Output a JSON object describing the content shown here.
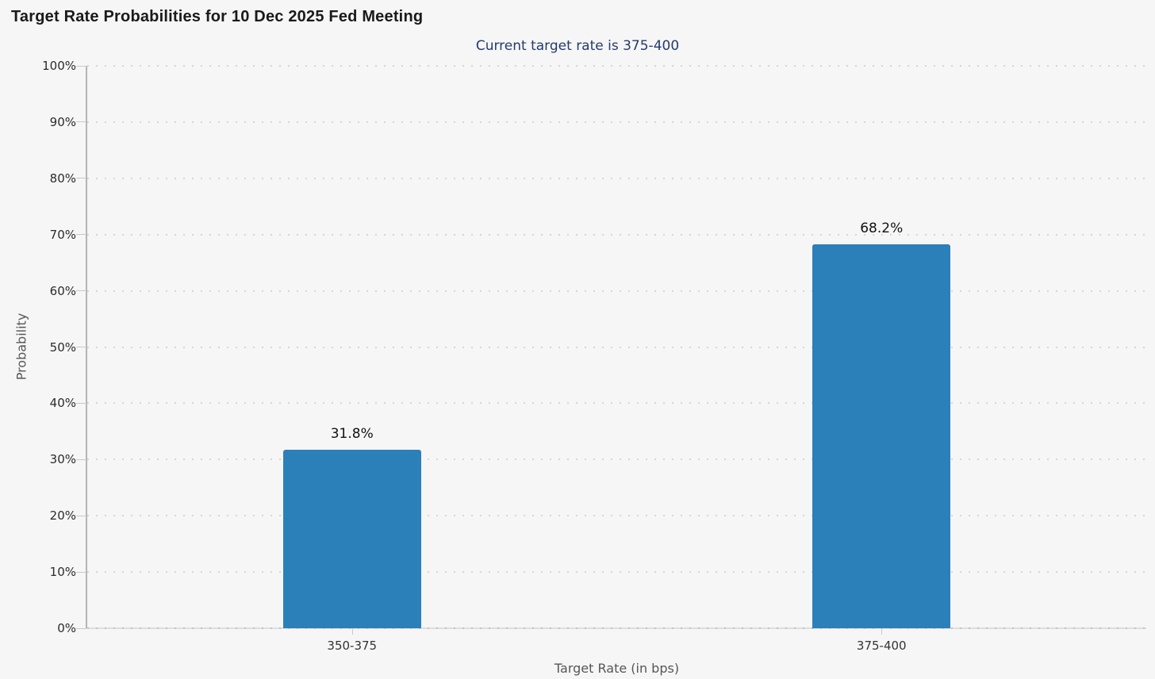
{
  "page": {
    "title": "Target Rate Probabilities for 10 Dec 2025 Fed Meeting",
    "subtitle": "Current target rate is 375-400"
  },
  "chart_data": {
    "type": "bar",
    "title": "Target Rate Probabilities for 10 Dec 2025 Fed Meeting",
    "subtitle": "Current target rate is 375-400",
    "categories": [
      "350-375",
      "375-400"
    ],
    "values": [
      31.8,
      68.2
    ],
    "value_labels": [
      "31.8%",
      "68.2%"
    ],
    "xlabel": "Target Rate (in bps)",
    "ylabel": "Probability",
    "ylim": [
      0,
      100
    ],
    "ytick_step": 10,
    "ytick_labels": [
      "0%",
      "10%",
      "20%",
      "30%",
      "40%",
      "50%",
      "60%",
      "70%",
      "80%",
      "90%",
      "100%"
    ],
    "grid": "dotted-horizontal",
    "legend_position": "none",
    "colors": {
      "bar": "#2b80b9",
      "background": "#f6f6f6",
      "subtitle_text": "#253a6d",
      "axis_line": "#b4b4b4",
      "gridline": "#d5d5d5",
      "tick_label": "#2b2b2b",
      "axis_title_text": "#565656",
      "value_label_text": "#111111"
    }
  }
}
